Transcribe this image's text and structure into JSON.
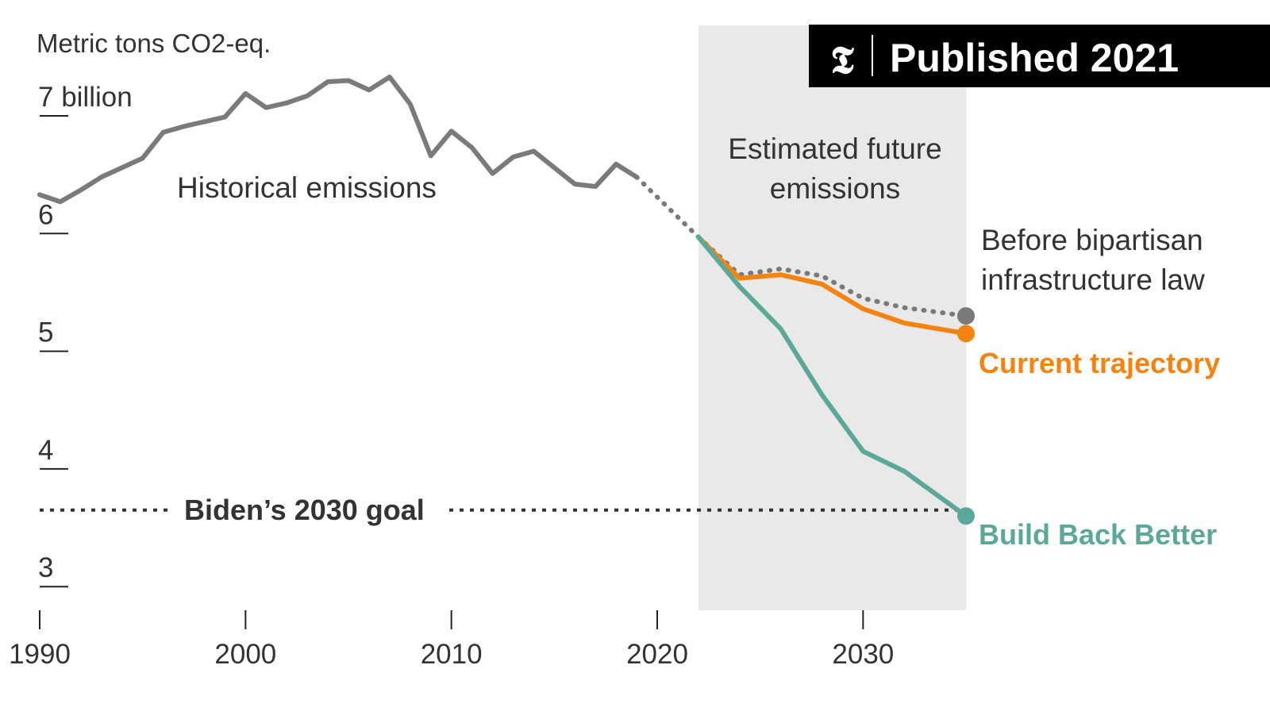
{
  "badge": {
    "logo_text": "𝕿",
    "text": "Published 2021"
  },
  "chart_data": {
    "type": "line",
    "ylabel": "Metric tons CO2-eq.",
    "ylim": [
      2.8,
      7.7
    ],
    "xlim": [
      1990,
      2035
    ],
    "x_ticks": [
      {
        "value": 1990,
        "label": "1990"
      },
      {
        "value": 2000,
        "label": "2000"
      },
      {
        "value": 2010,
        "label": "2010"
      },
      {
        "value": 2020,
        "label": "2020"
      },
      {
        "value": 2030,
        "label": "2030"
      }
    ],
    "y_ticks": [
      {
        "value": 7,
        "label": "7 billion"
      },
      {
        "value": 6,
        "label": "6"
      },
      {
        "value": 5,
        "label": "5"
      },
      {
        "value": 4,
        "label": "4"
      },
      {
        "value": 3,
        "label": "3"
      }
    ],
    "shaded_region": {
      "x_start": 2022,
      "x_end": 2035,
      "label_line1": "Estimated future",
      "label_line2": "emissions"
    },
    "goal": {
      "value": 3.65,
      "label": "Biden’s 2030 goal"
    },
    "series": [
      {
        "name": "Historical emissions",
        "color": "#7a7a7a",
        "style": "solid",
        "points": [
          [
            1990,
            6.33
          ],
          [
            1991,
            6.27
          ],
          [
            1992,
            6.37
          ],
          [
            1993,
            6.48
          ],
          [
            1994,
            6.56
          ],
          [
            1995,
            6.64
          ],
          [
            1996,
            6.86
          ],
          [
            1997,
            6.91
          ],
          [
            1998,
            6.95
          ],
          [
            1999,
            6.99
          ],
          [
            2000,
            7.19
          ],
          [
            2001,
            7.07
          ],
          [
            2002,
            7.11
          ],
          [
            2003,
            7.17
          ],
          [
            2004,
            7.29
          ],
          [
            2005,
            7.3
          ],
          [
            2006,
            7.22
          ],
          [
            2007,
            7.33
          ],
          [
            2008,
            7.1
          ],
          [
            2009,
            6.66
          ],
          [
            2010,
            6.87
          ],
          [
            2011,
            6.73
          ],
          [
            2012,
            6.51
          ],
          [
            2013,
            6.65
          ],
          [
            2014,
            6.7
          ],
          [
            2015,
            6.56
          ],
          [
            2016,
            6.42
          ],
          [
            2017,
            6.4
          ],
          [
            2018,
            6.59
          ],
          [
            2019,
            6.48
          ]
        ]
      },
      {
        "name": "Historical to projection bridge",
        "color": "#7a7a7a",
        "style": "dotted",
        "points": [
          [
            2019,
            6.48
          ],
          [
            2022,
            5.97
          ]
        ]
      },
      {
        "name": "Before bipartisan infrastructure law",
        "color": "#7a7a7a",
        "style": "dotted",
        "points": [
          [
            2022,
            5.97
          ],
          [
            2024,
            5.65
          ],
          [
            2026,
            5.7
          ],
          [
            2028,
            5.64
          ],
          [
            2030,
            5.45
          ],
          [
            2032,
            5.37
          ],
          [
            2035,
            5.3
          ]
        ]
      },
      {
        "name": "Current trajectory",
        "color": "#f4830f",
        "style": "solid",
        "points": [
          [
            2022,
            5.97
          ],
          [
            2024,
            5.62
          ],
          [
            2026,
            5.65
          ],
          [
            2028,
            5.57
          ],
          [
            2030,
            5.36
          ],
          [
            2032,
            5.24
          ],
          [
            2035,
            5.15
          ]
        ]
      },
      {
        "name": "Build Back Better",
        "color": "#5ba89b",
        "style": "solid",
        "points": [
          [
            2022,
            5.97
          ],
          [
            2024,
            5.55
          ],
          [
            2026,
            5.19
          ],
          [
            2028,
            4.63
          ],
          [
            2030,
            4.15
          ],
          [
            2032,
            3.98
          ],
          [
            2035,
            3.6
          ]
        ]
      }
    ],
    "annotations": {
      "historical": "Historical emissions",
      "before_line1": "Before bipartisan",
      "before_line2": "infrastructure law",
      "current": "Current trajectory",
      "bbb": "Build Back Better"
    },
    "colors": {
      "shade": "#e9e9e9",
      "axis": "#222222",
      "text": "#333333",
      "goal": "#333333",
      "badge_bg": "#000000",
      "badge_text": "#ffffff"
    }
  }
}
